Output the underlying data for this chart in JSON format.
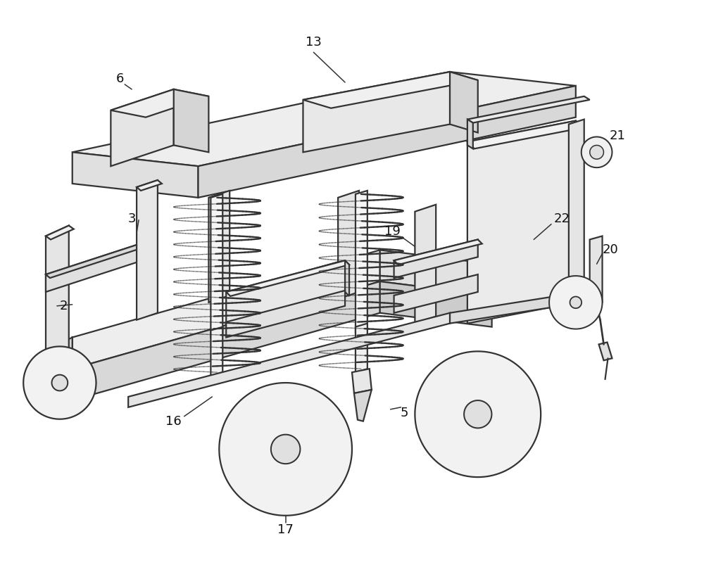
{
  "bg_color": "#ffffff",
  "line_color": "#333333",
  "line_width": 1.6,
  "fig_width": 10.0,
  "fig_height": 8.13,
  "label_fontsize": 13,
  "label_color": "#111111"
}
